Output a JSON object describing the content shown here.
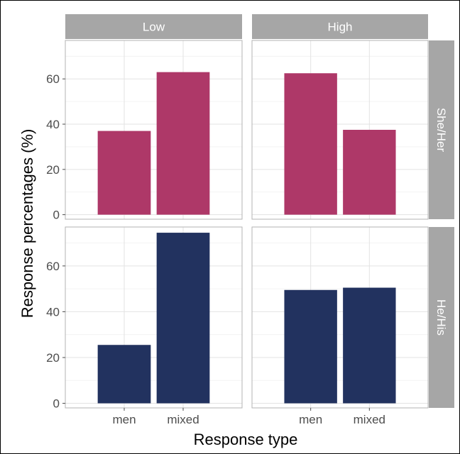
{
  "chart_data": {
    "type": "bar",
    "xlabel": "Response type",
    "ylabel": "Response percentages (%)",
    "categories": [
      "men",
      "mixed"
    ],
    "y_ticks": [
      0,
      20,
      40,
      60
    ],
    "ylim": [
      -2,
      77
    ],
    "grid": true,
    "column_facets": [
      "Low",
      "High"
    ],
    "row_facets": [
      "She/Her",
      "He/His"
    ],
    "colors": {
      "She/Her": "#ae3868",
      "He/His": "#22325f"
    },
    "panels": [
      {
        "column": "Low",
        "row": "She/Her",
        "values": [
          37,
          63
        ]
      },
      {
        "column": "High",
        "row": "She/Her",
        "values": [
          62.5,
          37.5
        ]
      },
      {
        "column": "Low",
        "row": "He/His",
        "values": [
          25.5,
          74.5
        ]
      },
      {
        "column": "High",
        "row": "He/His",
        "values": [
          49.5,
          50.5
        ]
      }
    ]
  }
}
